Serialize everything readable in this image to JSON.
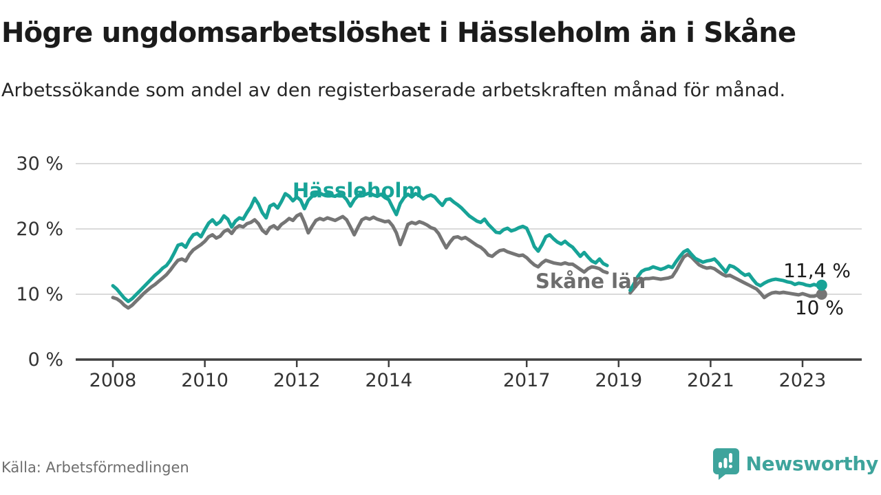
{
  "title": "Högre ungdomsarbetslöshet i Hässleholm än i Skåne",
  "subtitle": "Arbetssökande som andel av den registerbaserade arbetskraften månad för månad.",
  "footer": {
    "source": "Källa: Arbetsförmedlingen"
  },
  "logo": {
    "name": "Newsworthy",
    "icon": "newsworthy-speech-bubble-bar-chart-icon"
  },
  "colors": {
    "hassleholm": "#17a397",
    "skane": "#757575",
    "skane_label": "#6d6d6d",
    "grid": "#dadada",
    "axis": "#3f3f3f",
    "tick_text": "#333333",
    "end_label_text": "#1a1a1a",
    "logo_teal": "#3ea49c",
    "background": "#ffffff"
  },
  "chart_data": {
    "type": "line",
    "title": "Högre ungdomsarbetslöshet i Hässleholm än i Skåne",
    "subtitle": "Arbetssökande som andel av den registerbaserade arbetskraften månad för månad.",
    "x_unit": "monthly",
    "x_start": "2008-01",
    "x_end": "2023-06",
    "data_gap": "2018-11 to 2019-03 (no data, line break)",
    "ylim": [
      0,
      32
    ],
    "grid": "horizontal",
    "y_ticks": [
      {
        "v": 0,
        "label": "0 %"
      },
      {
        "v": 10,
        "label": "10 %"
      },
      {
        "v": 20,
        "label": "20 %"
      },
      {
        "v": 30,
        "label": "30 %"
      }
    ],
    "x_ticks": [
      {
        "v": 2008,
        "label": "2008"
      },
      {
        "v": 2010,
        "label": "2010"
      },
      {
        "v": 2012,
        "label": "2012"
      },
      {
        "v": 2014,
        "label": "2014"
      },
      {
        "v": 2017,
        "label": "2017"
      },
      {
        "v": 2019,
        "label": "2019"
      },
      {
        "v": 2021,
        "label": "2021"
      },
      {
        "v": 2023,
        "label": "2023"
      }
    ],
    "series": [
      {
        "name": "Skåne län",
        "color": "#757575",
        "end_label": "10 %",
        "end_value": 10.0,
        "values": [
          9.5,
          9.3,
          8.9,
          8.3,
          7.9,
          8.3,
          8.9,
          9.5,
          10.1,
          10.6,
          11.1,
          11.5,
          12.0,
          12.5,
          13.0,
          13.7,
          14.5,
          15.2,
          15.4,
          15.1,
          16.1,
          16.8,
          17.2,
          17.6,
          18.1,
          18.8,
          19.1,
          18.6,
          18.9,
          19.6,
          19.9,
          19.3,
          20.1,
          20.5,
          20.3,
          20.8,
          21.0,
          21.4,
          20.8,
          19.8,
          19.3,
          20.2,
          20.5,
          20.0,
          20.7,
          21.1,
          21.6,
          21.3,
          22.0,
          22.3,
          21.0,
          19.4,
          20.4,
          21.3,
          21.6,
          21.4,
          21.7,
          21.5,
          21.3,
          21.6,
          21.9,
          21.4,
          20.3,
          19.1,
          20.3,
          21.4,
          21.7,
          21.5,
          21.8,
          21.5,
          21.3,
          21.1,
          21.2,
          20.5,
          19.4,
          17.6,
          19.1,
          20.7,
          21.0,
          20.8,
          21.1,
          20.9,
          20.6,
          20.2,
          20.0,
          19.3,
          18.2,
          17.1,
          18.0,
          18.7,
          18.8,
          18.5,
          18.7,
          18.3,
          17.9,
          17.5,
          17.2,
          16.7,
          16.0,
          15.8,
          16.3,
          16.7,
          16.8,
          16.5,
          16.3,
          16.1,
          15.9,
          16.0,
          15.6,
          15.0,
          14.5,
          14.2,
          14.8,
          15.2,
          15.0,
          14.8,
          14.7,
          14.6,
          14.8,
          14.6,
          14.6,
          14.2,
          13.8,
          13.4,
          13.9,
          14.2,
          14.1,
          13.9,
          13.5,
          13.3,
          null,
          null,
          null,
          null,
          null,
          10.2,
          10.9,
          11.6,
          12.2,
          12.4,
          12.4,
          12.5,
          12.4,
          12.3,
          12.4,
          12.5,
          12.7,
          13.6,
          14.7,
          15.7,
          16.1,
          15.7,
          15.1,
          14.5,
          14.2,
          14.0,
          14.1,
          13.9,
          13.5,
          13.1,
          12.8,
          12.9,
          12.6,
          12.3,
          12.0,
          11.7,
          11.4,
          11.1,
          10.8,
          10.2,
          9.5,
          9.9,
          10.2,
          10.3,
          10.2,
          10.3,
          10.2,
          10.1,
          10.0,
          9.9,
          10.1,
          9.9,
          9.7,
          9.7,
          9.9,
          10.0
        ]
      },
      {
        "name": "Hässleholm",
        "color": "#17a397",
        "end_label": "11,4 %",
        "end_value": 11.4,
        "values": [
          11.3,
          10.8,
          10.1,
          9.4,
          8.9,
          9.3,
          9.9,
          10.5,
          11.1,
          11.7,
          12.3,
          12.9,
          13.4,
          14.0,
          14.4,
          15.2,
          16.3,
          17.5,
          17.7,
          17.2,
          18.3,
          19.1,
          19.3,
          18.8,
          19.9,
          20.9,
          21.4,
          20.7,
          21.1,
          22.0,
          21.5,
          20.3,
          21.2,
          21.7,
          21.5,
          22.5,
          23.4,
          24.7,
          23.8,
          22.5,
          21.7,
          23.5,
          23.8,
          23.2,
          24.2,
          25.4,
          25.0,
          24.3,
          24.9,
          24.4,
          23.1,
          24.4,
          25.0,
          25.4,
          25.5,
          25.2,
          25.4,
          25.1,
          25.0,
          25.3,
          25.1,
          24.5,
          23.5,
          24.5,
          25.1,
          25.5,
          25.3,
          25.5,
          25.2,
          25.0,
          25.3,
          24.8,
          24.5,
          23.3,
          22.2,
          23.9,
          24.8,
          25.3,
          24.9,
          25.4,
          25.1,
          24.6,
          25.0,
          25.2,
          24.9,
          24.2,
          23.6,
          24.5,
          24.6,
          24.1,
          23.7,
          23.2,
          22.6,
          22.0,
          21.6,
          21.2,
          21.0,
          21.5,
          20.7,
          20.1,
          19.5,
          19.4,
          19.9,
          20.1,
          19.7,
          19.9,
          20.2,
          20.4,
          20.1,
          18.8,
          17.3,
          16.6,
          17.6,
          18.8,
          19.1,
          18.5,
          18.0,
          17.7,
          18.1,
          17.6,
          17.2,
          16.5,
          15.8,
          16.4,
          15.7,
          15.1,
          14.8,
          15.4,
          14.7,
          14.4,
          null,
          null,
          null,
          null,
          null,
          10.6,
          11.6,
          12.7,
          13.5,
          13.8,
          13.9,
          14.2,
          14.0,
          13.8,
          14.0,
          14.3,
          14.1,
          15.0,
          15.8,
          16.5,
          16.8,
          16.1,
          15.5,
          15.2,
          14.9,
          15.1,
          15.2,
          15.4,
          14.8,
          14.1,
          13.4,
          14.4,
          14.2,
          13.8,
          13.3,
          12.9,
          13.1,
          12.3,
          11.6,
          11.3,
          11.7,
          12.0,
          12.2,
          12.3,
          12.2,
          12.1,
          11.9,
          11.8,
          11.5,
          11.7,
          11.6,
          11.4,
          11.3,
          11.5,
          11.3,
          11.4
        ]
      }
    ],
    "series_annotations": [
      {
        "text": "Hässleholm",
        "series": "Hässleholm"
      },
      {
        "text": "Skåne län",
        "series": "Skåne län"
      }
    ]
  }
}
